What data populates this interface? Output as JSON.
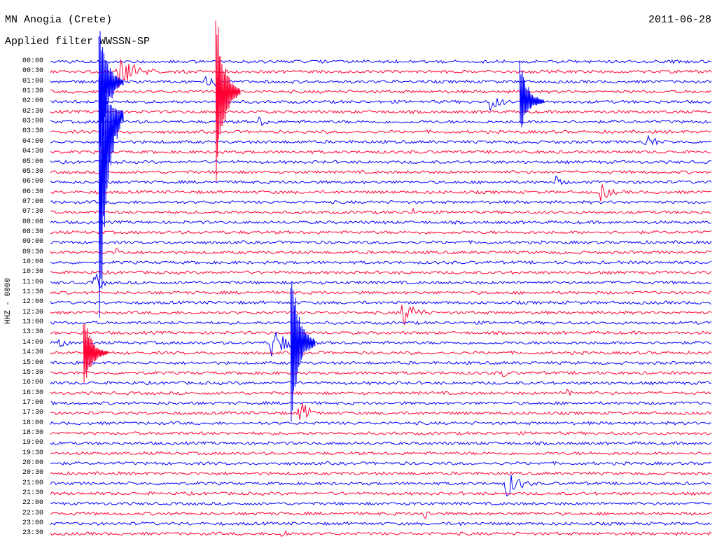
{
  "header": {
    "title": "MN Anogia (Crete)",
    "filter": "Applied filter WWSSN-SP",
    "date": "2011-06-28",
    "channel": "HHZ - 0000"
  },
  "colors": {
    "trace_a": "#0000ff",
    "trace_b": "#ff0033"
  },
  "chart_data": {
    "type": "line",
    "title": "MN Anogia (Crete)",
    "subtitle": "Applied filter WWSSN-SP",
    "ylabel": "HHZ - 0000",
    "date": "2011-06-28",
    "row_labels": [
      "00:00",
      "00:30",
      "01:00",
      "01:30",
      "02:00",
      "02:30",
      "03:00",
      "03:30",
      "04:00",
      "04:30",
      "05:00",
      "05:30",
      "06:00",
      "06:30",
      "07:00",
      "07:30",
      "08:00",
      "08:30",
      "09:00",
      "09:30",
      "10:00",
      "10:30",
      "11:00",
      "11:30",
      "12:00",
      "12:30",
      "13:00",
      "13:30",
      "14:00",
      "14:30",
      "15:00",
      "15:30",
      "16:00",
      "16:30",
      "17:00",
      "17:30",
      "18:00",
      "18:30",
      "19:00",
      "19:30",
      "20:00",
      "20:30",
      "21:00",
      "21:30",
      "22:00",
      "22:30",
      "23:00",
      "23:30"
    ],
    "row_colors": [
      "blue",
      "red"
    ],
    "x_minutes_per_row": 30,
    "events": [
      {
        "row": 1,
        "minute": 3.0,
        "amp": 30,
        "dur": 2.5
      },
      {
        "row": 2,
        "minute": 7.0,
        "amp": 14,
        "dur": 2.0
      },
      {
        "row": 4,
        "minute": 20.0,
        "amp": 14,
        "dur": 1.5
      },
      {
        "row": 6,
        "minute": 9.5,
        "amp": 9,
        "dur": 1.2
      },
      {
        "row": 8,
        "minute": 27.0,
        "amp": 14,
        "dur": 1.5
      },
      {
        "row": 12,
        "minute": 23.0,
        "amp": 9,
        "dur": 1.2
      },
      {
        "row": 13,
        "minute": 25.0,
        "amp": 14,
        "dur": 1.5
      },
      {
        "row": 15,
        "minute": 16.5,
        "amp": 9,
        "dur": 0.6
      },
      {
        "row": 19,
        "minute": 3.0,
        "amp": 9,
        "dur": 1.0
      },
      {
        "row": 22,
        "minute": 2.0,
        "amp": 16,
        "dur": 1.2
      },
      {
        "row": 25,
        "minute": 16.0,
        "amp": 20,
        "dur": 2.0
      },
      {
        "row": 28,
        "minute": 10.0,
        "amp": 28,
        "dur": 2.0
      },
      {
        "row": 28,
        "minute": 0.4,
        "amp": 10,
        "dur": 1.2
      },
      {
        "row": 29,
        "minute": 1.6,
        "amp": 16,
        "dur": 1.5
      },
      {
        "row": 31,
        "minute": 20.5,
        "amp": 9,
        "dur": 0.8
      },
      {
        "row": 33,
        "minute": 23.5,
        "amp": 8,
        "dur": 1.5
      },
      {
        "row": 35,
        "minute": 11.3,
        "amp": 20,
        "dur": 1.5
      },
      {
        "row": 42,
        "minute": 20.7,
        "amp": 20,
        "dur": 2.0
      },
      {
        "row": 44,
        "minute": 16.5,
        "amp": 7,
        "dur": 0.8
      },
      {
        "row": 45,
        "minute": 17.0,
        "amp": 10,
        "dur": 0.7
      },
      {
        "row": 46,
        "minute": 18.5,
        "amp": 5,
        "dur": 1.0
      },
      {
        "row": 47,
        "minute": 10.5,
        "amp": 10,
        "dur": 1.0
      }
    ]
  }
}
